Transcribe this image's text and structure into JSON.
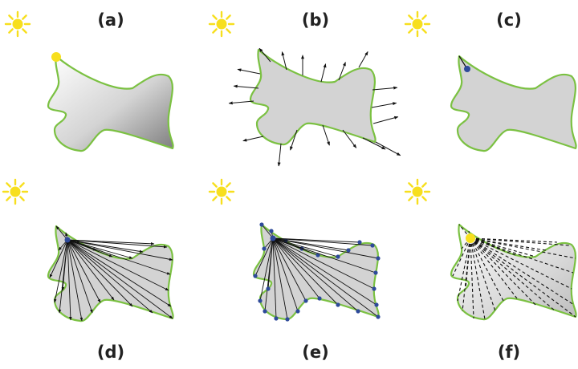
{
  "figure": {
    "colors": {
      "outline": "#7bc142",
      "fill": "#d3d3d3",
      "sun": "#f7df1e",
      "point": "#2e4a9a",
      "ray": "#111111"
    },
    "panels": [
      {
        "id": "a",
        "label": "(a)",
        "icons": [
          "sun-icon",
          "light-source-point",
          "gradient-shaded-shape"
        ]
      },
      {
        "id": "b",
        "label": "(b)",
        "icons": [
          "sun-icon",
          "surface-normal-arrows"
        ]
      },
      {
        "id": "c",
        "label": "(c)",
        "icons": [
          "sun-icon",
          "sample-point"
        ]
      },
      {
        "id": "d",
        "label": "(d)",
        "icons": [
          "sun-icon",
          "ray-arrows-from-point"
        ]
      },
      {
        "id": "e",
        "label": "(e)",
        "icons": [
          "sun-icon",
          "ray-hit-points"
        ]
      },
      {
        "id": "f",
        "label": "(f)",
        "icons": [
          "sun-icon",
          "light-source-point",
          "dashed-rays"
        ]
      }
    ]
  }
}
